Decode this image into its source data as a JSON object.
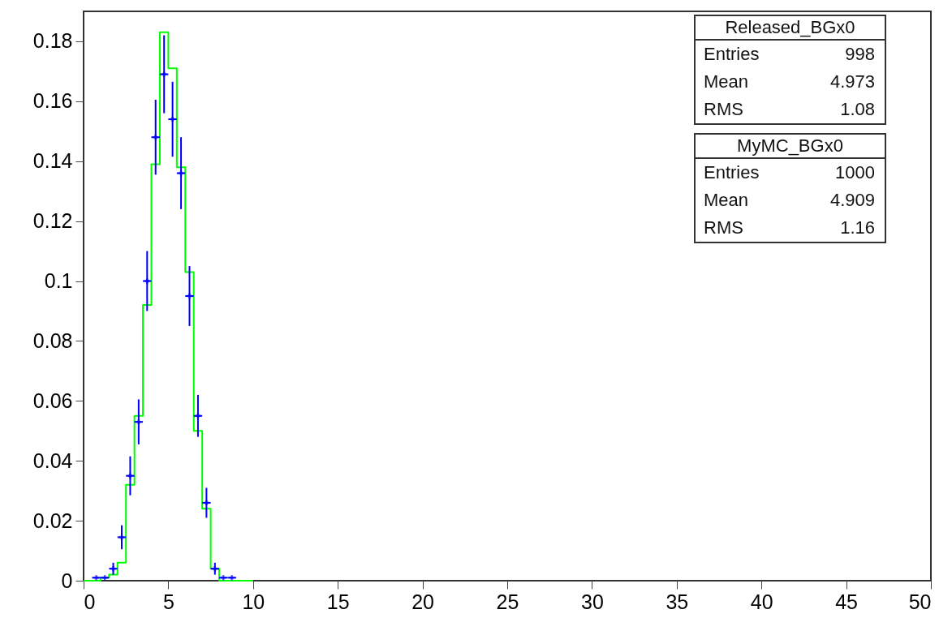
{
  "chart_data": {
    "type": "histogram",
    "xlim": [
      0,
      50
    ],
    "xticks": [
      0,
      5,
      10,
      15,
      20,
      25,
      30,
      35,
      40,
      45,
      50
    ],
    "ylim": [
      0,
      0.19
    ],
    "yticks": [
      0,
      0.02,
      0.04,
      0.06,
      0.08,
      0.1,
      0.12,
      0.14,
      0.16,
      0.18
    ],
    "marker": "cross",
    "bins": [
      0,
      0.5,
      1,
      1.5,
      2,
      2.5,
      3,
      3.5,
      4,
      4.5,
      5,
      5.5,
      6,
      6.5,
      7,
      7.5,
      8,
      8.5,
      9,
      9.5,
      10
    ],
    "series": [
      {
        "type": "scatter",
        "color": "#0000ff",
        "x": [
          0.75,
          1.25,
          1.75,
          2.25,
          2.75,
          3.25,
          3.75,
          4.25,
          4.75,
          5.25,
          5.75,
          6.25,
          6.75,
          7.25,
          7.75,
          8.25,
          8.75
        ],
        "values": [
          0.001,
          0.001,
          0.004,
          0.0145,
          0.035,
          0.053,
          0.1,
          0.148,
          0.169,
          0.154,
          0.136,
          0.095,
          0.055,
          0.026,
          0.004,
          0.001,
          0.001
        ],
        "errors": [
          null,
          null,
          0.002,
          0.004,
          0.0065,
          0.0075,
          0.01,
          0.0125,
          0.013,
          0.0125,
          0.012,
          0.01,
          0.007,
          0.005,
          0.002,
          null,
          null
        ],
        "xerrors": [
          0.25,
          0.25,
          0.25,
          0.25,
          0.25,
          0.25,
          0.25,
          0.25,
          0.25,
          0.25,
          0.25,
          0.25,
          0.25,
          0.25,
          0.25,
          0.25,
          0.25
        ]
      },
      {
        "color": "#00ff00",
        "values": [
          0,
          0,
          0.001,
          0.002,
          0.006,
          0.032,
          0.055,
          0.092,
          0.139,
          0.183,
          0.171,
          0.138,
          0.103,
          0.05,
          0.024,
          0.004,
          0,
          0,
          0,
          0
        ]
      }
    ],
    "annotations": [
      "Released_BGx0",
      "Entries 998",
      "Mean 4.973",
      "RMS 1.08",
      "MyMC_BGx0",
      "Entries 1000",
      "Mean 4.909",
      "RMS 1.16"
    ]
  }
}
